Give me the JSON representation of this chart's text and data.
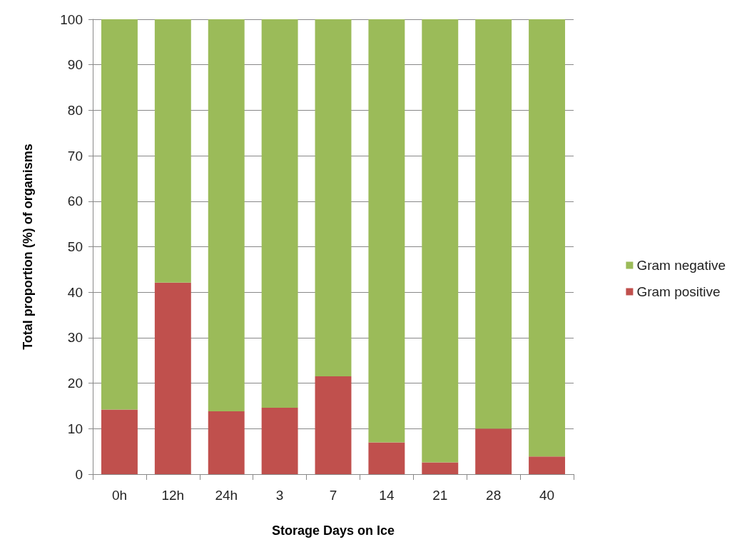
{
  "chart_data": {
    "type": "bar",
    "stacked": true,
    "xlabel": "Storage Days on Ice",
    "ylabel": "Total proportion (%) of organisms",
    "categories": [
      "0h",
      "12h",
      "24h",
      "3",
      "7",
      "14",
      "21",
      "28",
      "40"
    ],
    "series": [
      {
        "name": "Gram positive",
        "color": "#c0504d",
        "values": [
          14.2,
          42.1,
          13.8,
          14.6,
          21.5,
          7.0,
          2.6,
          10.0,
          3.9
        ]
      },
      {
        "name": "Gram negative",
        "color": "#9bbb59",
        "values": [
          85.8,
          57.9,
          86.2,
          85.4,
          78.5,
          93.0,
          97.4,
          90.0,
          96.1
        ]
      }
    ],
    "ylim": [
      0,
      100
    ],
    "yticks": [
      0,
      10,
      20,
      30,
      40,
      50,
      60,
      70,
      80,
      90,
      100
    ],
    "grid": "y",
    "legend": "right"
  }
}
